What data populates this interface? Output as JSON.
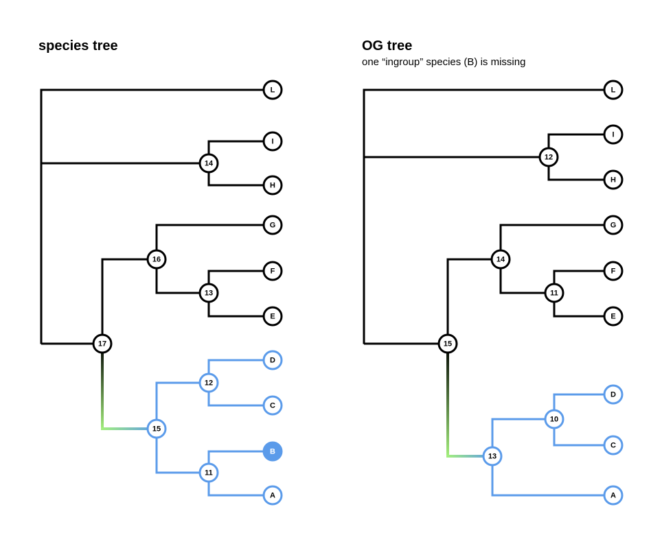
{
  "colors": {
    "black": "#000000",
    "blue": "#5b9bea",
    "green": "#a4f07c",
    "white": "#ffffff"
  },
  "species_tree": {
    "title": "species tree",
    "leaves": [
      {
        "id": "L",
        "label": "L",
        "group": "black",
        "filled": false
      },
      {
        "id": "I",
        "label": "I",
        "group": "black",
        "filled": false
      },
      {
        "id": "H",
        "label": "H",
        "group": "black",
        "filled": false
      },
      {
        "id": "G",
        "label": "G",
        "group": "black",
        "filled": false
      },
      {
        "id": "F",
        "label": "F",
        "group": "black",
        "filled": false
      },
      {
        "id": "E",
        "label": "E",
        "group": "black",
        "filled": false
      },
      {
        "id": "D",
        "label": "D",
        "group": "blue",
        "filled": false
      },
      {
        "id": "C",
        "label": "C",
        "group": "blue",
        "filled": false
      },
      {
        "id": "B",
        "label": "B",
        "group": "blue",
        "filled": true
      },
      {
        "id": "A",
        "label": "A",
        "group": "blue",
        "filled": false
      }
    ],
    "internal_nodes": [
      {
        "id": "n17",
        "label": "17",
        "group": "black"
      },
      {
        "id": "n14",
        "label": "14",
        "group": "black"
      },
      {
        "id": "n16",
        "label": "16",
        "group": "black"
      },
      {
        "id": "n13",
        "label": "13",
        "group": "black"
      },
      {
        "id": "n15",
        "label": "15",
        "group": "blue"
      },
      {
        "id": "n12",
        "label": "12",
        "group": "blue"
      },
      {
        "id": "n11",
        "label": "11",
        "group": "blue"
      }
    ],
    "edges": [
      {
        "from": "root",
        "to": "L",
        "color": "black"
      },
      {
        "from": "root",
        "to": "n14",
        "color": "black"
      },
      {
        "from": "root",
        "to": "n17",
        "color": "black"
      },
      {
        "from": "n14",
        "to": "I",
        "color": "black"
      },
      {
        "from": "n14",
        "to": "H",
        "color": "black"
      },
      {
        "from": "n17",
        "to": "n16",
        "color": "black"
      },
      {
        "from": "n17",
        "to": "n15",
        "color": "gradient"
      },
      {
        "from": "n16",
        "to": "G",
        "color": "black"
      },
      {
        "from": "n16",
        "to": "n13",
        "color": "black"
      },
      {
        "from": "n13",
        "to": "F",
        "color": "black"
      },
      {
        "from": "n13",
        "to": "E",
        "color": "black"
      },
      {
        "from": "n15",
        "to": "n12",
        "color": "blue"
      },
      {
        "from": "n15",
        "to": "n11",
        "color": "blue"
      },
      {
        "from": "n12",
        "to": "D",
        "color": "blue"
      },
      {
        "from": "n12",
        "to": "C",
        "color": "blue"
      },
      {
        "from": "n11",
        "to": "B",
        "color": "blue"
      },
      {
        "from": "n11",
        "to": "A",
        "color": "blue"
      }
    ]
  },
  "og_tree": {
    "title": "OG tree",
    "subtitle": "one “ingroup” species (B) is missing",
    "leaves": [
      {
        "id": "L",
        "label": "L",
        "group": "black",
        "filled": false
      },
      {
        "id": "I",
        "label": "I",
        "group": "black",
        "filled": false
      },
      {
        "id": "H",
        "label": "H",
        "group": "black",
        "filled": false
      },
      {
        "id": "G",
        "label": "G",
        "group": "black",
        "filled": false
      },
      {
        "id": "F",
        "label": "F",
        "group": "black",
        "filled": false
      },
      {
        "id": "E",
        "label": "E",
        "group": "black",
        "filled": false
      },
      {
        "id": "D",
        "label": "D",
        "group": "blue",
        "filled": false
      },
      {
        "id": "C",
        "label": "C",
        "group": "blue",
        "filled": false
      },
      {
        "id": "A",
        "label": "A",
        "group": "blue",
        "filled": false
      }
    ],
    "internal_nodes": [
      {
        "id": "n15",
        "label": "15",
        "group": "black"
      },
      {
        "id": "n12",
        "label": "12",
        "group": "black"
      },
      {
        "id": "n14",
        "label": "14",
        "group": "black"
      },
      {
        "id": "n11",
        "label": "11",
        "group": "black"
      },
      {
        "id": "n13",
        "label": "13",
        "group": "blue"
      },
      {
        "id": "n10",
        "label": "10",
        "group": "blue"
      }
    ],
    "edges": [
      {
        "from": "root",
        "to": "L",
        "color": "black"
      },
      {
        "from": "root",
        "to": "n12",
        "color": "black"
      },
      {
        "from": "root",
        "to": "n15",
        "color": "black"
      },
      {
        "from": "n12",
        "to": "I",
        "color": "black"
      },
      {
        "from": "n12",
        "to": "H",
        "color": "black"
      },
      {
        "from": "n15",
        "to": "n14",
        "color": "black"
      },
      {
        "from": "n15",
        "to": "n13",
        "color": "gradient"
      },
      {
        "from": "n14",
        "to": "G",
        "color": "black"
      },
      {
        "from": "n14",
        "to": "n11",
        "color": "black"
      },
      {
        "from": "n11",
        "to": "F",
        "color": "black"
      },
      {
        "from": "n11",
        "to": "E",
        "color": "black"
      },
      {
        "from": "n13",
        "to": "n10",
        "color": "blue"
      },
      {
        "from": "n13",
        "to": "A",
        "color": "blue"
      },
      {
        "from": "n10",
        "to": "D",
        "color": "blue"
      },
      {
        "from": "n10",
        "to": "C",
        "color": "blue"
      }
    ]
  }
}
